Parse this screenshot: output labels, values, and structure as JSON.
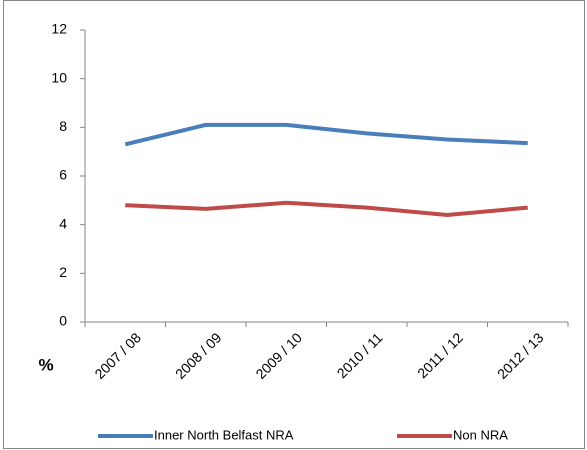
{
  "chart_data": {
    "type": "line",
    "y_label": "%",
    "categories": [
      "2007 / 08",
      "2008 / 09",
      "2009 / 10",
      "2010 / 11",
      "2011 / 12",
      "2012 / 13"
    ],
    "series": [
      {
        "name": "Inner North Belfast NRA",
        "color": "#4a7ebb",
        "values": [
          7.3,
          8.1,
          8.1,
          7.75,
          7.5,
          7.35
        ]
      },
      {
        "name": "Non NRA",
        "color": "#be4b48",
        "values": [
          4.8,
          4.65,
          4.9,
          4.7,
          4.4,
          4.7
        ]
      }
    ],
    "ylim": [
      0,
      12
    ],
    "yticks": [
      0,
      2,
      4,
      6,
      8,
      10,
      12
    ],
    "grid": false,
    "legend": "bottom"
  }
}
